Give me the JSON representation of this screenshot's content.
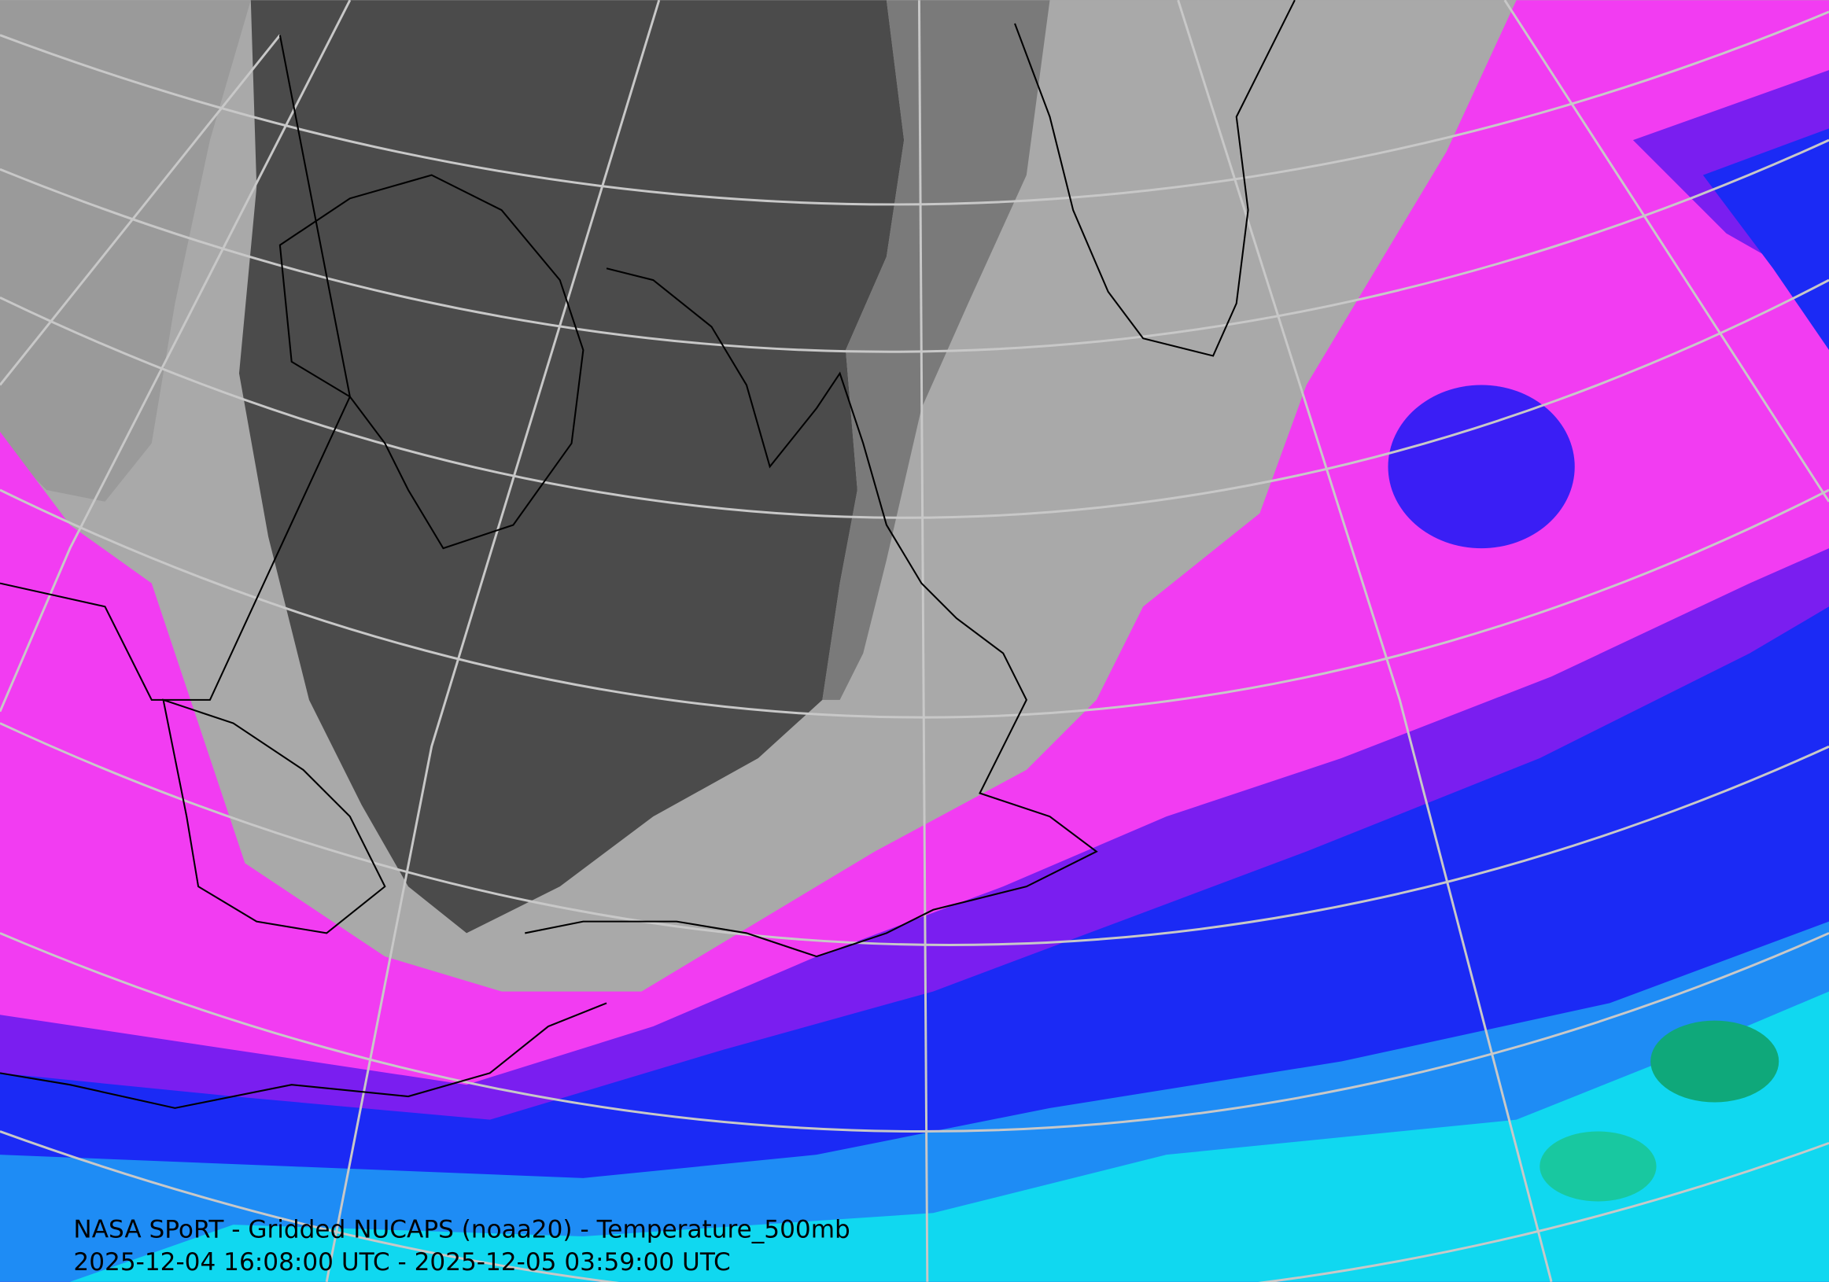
{
  "caption": {
    "title": "NASA SPoRT - Gridded NUCAPS (noaa20) - Temperature_500mb",
    "time_range": "2025-12-04 16:08:00 UTC - 2025-12-05 03:59:00 UTC"
  }
}
